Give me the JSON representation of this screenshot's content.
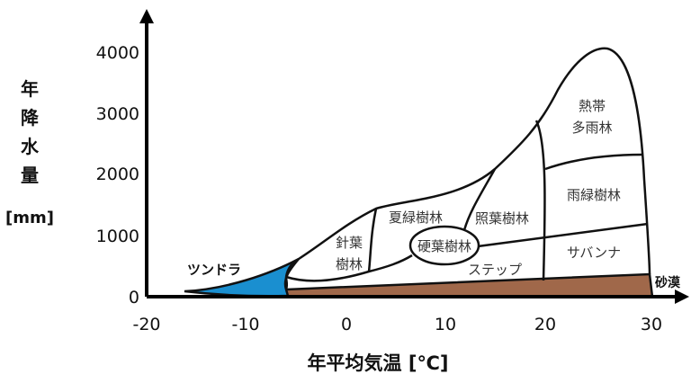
{
  "y_axis": {
    "title_chars": [
      "年",
      "降",
      "水",
      "量"
    ],
    "unit": "[mm]",
    "ticks": [
      "0",
      "1000",
      "2000",
      "3000",
      "4000"
    ]
  },
  "x_axis": {
    "title": "年平均気温 [℃]",
    "ticks": [
      "-20",
      "-10",
      "0",
      "10",
      "20",
      "30"
    ]
  },
  "biomes": {
    "tundra": "ツンドラ",
    "conifer_1": "針葉",
    "conifer_2": "樹林",
    "deciduous": "夏緑樹林",
    "sclerophyll": "硬葉樹林",
    "laurel": "照葉樹林",
    "tropical_1": "熱帯",
    "tropical_2": "多雨林",
    "raingreen": "雨緑樹林",
    "savanna": "サバンナ",
    "steppe": "ステップ",
    "desert": "砂漠"
  },
  "colors": {
    "tundra": "#1a8fd0",
    "desert": "#a0684a"
  }
}
